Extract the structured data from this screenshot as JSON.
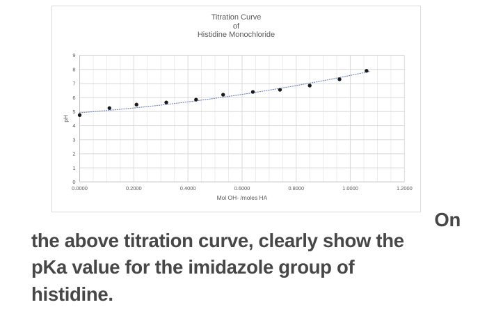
{
  "page": {
    "background": "#ffffff"
  },
  "colors": {
    "chart_text": "#595959",
    "grid_major": "#d9d9d9",
    "grid_minor": "#ececec",
    "axis_line": "#bfbfbf",
    "marker": "#1a1a1a",
    "trendline": "#7286bd",
    "card_border": "#d9d9d9",
    "caption_text": "#474747"
  },
  "chart_data": {
    "type": "scatter",
    "title": "Titration Curve of Histidine Monochloride",
    "title_lines": [
      "Titration Curve",
      "of",
      "Histidine Monochloride"
    ],
    "xlabel": "Mol OH- /moles HA",
    "ylabel": "pH",
    "xlim": [
      0,
      1.2
    ],
    "ylim": [
      0,
      9
    ],
    "x_major_step": 0.2,
    "x_minor_step": 0.05,
    "y_major_step": 1,
    "x_tick_labels": [
      "0.0000",
      "0.2000",
      "0.4000",
      "0.6000",
      "0.8000",
      "1.0000",
      "1.2000"
    ],
    "y_tick_labels": [
      "0",
      "1",
      "2",
      "3",
      "4",
      "5",
      "6",
      "7",
      "8",
      "9"
    ],
    "grid": true,
    "legend": false,
    "points": [
      [
        0.0,
        4.75
      ],
      [
        0.11,
        5.25
      ],
      [
        0.21,
        5.5
      ],
      [
        0.32,
        5.65
      ],
      [
        0.43,
        5.85
      ],
      [
        0.53,
        6.2
      ],
      [
        0.64,
        6.4
      ],
      [
        0.74,
        6.55
      ],
      [
        0.85,
        6.85
      ],
      [
        0.96,
        7.3
      ],
      [
        1.06,
        7.9
      ]
    ],
    "trendline": {
      "style": "dotted",
      "shape": "quadratic",
      "points": [
        [
          0.0,
          4.92
        ],
        [
          0.535,
          6.04
        ],
        [
          1.07,
          7.85
        ]
      ]
    }
  },
  "caption": {
    "lines": [
      "On",
      "the above titration curve, clearly show the",
      "pKa value for the imidazole group of",
      "histidine."
    ]
  }
}
